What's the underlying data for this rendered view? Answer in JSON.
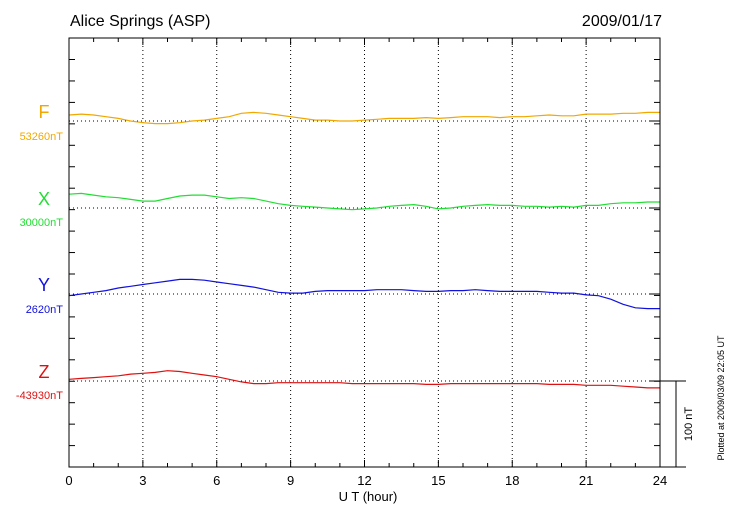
{
  "chart_data": {
    "type": "line",
    "title": "Alice Springs (ASP)",
    "date": "2009/01/17",
    "xlabel": "U T (hour)",
    "xlim": [
      0,
      24
    ],
    "xticks": [
      "0",
      "3",
      "6",
      "9",
      "12",
      "15",
      "18",
      "21",
      "24"
    ],
    "scale_bar_label": "100 nT",
    "scale_bar_nT": 100,
    "plotted_note": "Plotted at 2009/03/09 22:05 UT",
    "grid": true,
    "series": [
      {
        "name": "F",
        "baseline_label": "53260nT",
        "color": "#f0a800",
        "x": [
          0,
          0.5,
          1,
          1.5,
          2,
          2.5,
          3,
          3.5,
          4,
          4.5,
          5,
          5.5,
          6,
          6.5,
          7,
          7.5,
          8,
          8.5,
          9,
          9.5,
          10,
          10.5,
          11,
          11.5,
          12,
          12.5,
          13,
          13.5,
          14,
          14.5,
          15,
          15.5,
          16,
          16.5,
          17,
          17.5,
          18,
          18.5,
          19,
          19.5,
          20,
          20.5,
          21,
          21.5,
          22,
          22.5,
          23,
          23.5,
          24
        ],
        "y": [
          7,
          8,
          7,
          5,
          3,
          0,
          -2,
          -3,
          -3,
          -2,
          0,
          1,
          3,
          5,
          9,
          10,
          9,
          7,
          5,
          3,
          1,
          1,
          0,
          0,
          1,
          2,
          3,
          3,
          3,
          4,
          3,
          4,
          5,
          5,
          5,
          4,
          5,
          5,
          6,
          7,
          6,
          6,
          8,
          8,
          8,
          9,
          9,
          10,
          10
        ]
      },
      {
        "name": "X",
        "baseline_label": "30000nT",
        "color": "#22dd33",
        "x": [
          0,
          0.5,
          1,
          1.5,
          2,
          2.5,
          3,
          3.5,
          4,
          4.5,
          5,
          5.5,
          6,
          6.5,
          7,
          7.5,
          8,
          8.5,
          9,
          9.5,
          10,
          10.5,
          11,
          11.5,
          12,
          12.5,
          13,
          13.5,
          14,
          14.5,
          15,
          15.5,
          16,
          16.5,
          17,
          17.5,
          18,
          18.5,
          19,
          19.5,
          20,
          20.5,
          21,
          21.5,
          22,
          22.5,
          23,
          23.5,
          24
        ],
        "y": [
          16,
          17,
          15,
          13,
          12,
          10,
          8,
          8,
          11,
          14,
          15,
          15,
          13,
          11,
          12,
          11,
          8,
          5,
          3,
          2,
          1,
          0,
          -1,
          -2,
          -1,
          0,
          2,
          3,
          4,
          2,
          -1,
          0,
          2,
          3,
          4,
          3,
          3,
          2,
          2,
          1,
          2,
          1,
          3,
          3,
          5,
          6,
          6,
          7,
          7
        ]
      },
      {
        "name": "Y",
        "baseline_label": "2620nT",
        "color": "#1111dd",
        "x": [
          0,
          0.5,
          1,
          1.5,
          2,
          2.5,
          3,
          3.5,
          4,
          4.5,
          5,
          5.5,
          6,
          6.5,
          7,
          7.5,
          8,
          8.5,
          9,
          9.5,
          10,
          10.5,
          11,
          11.5,
          12,
          12.5,
          13,
          13.5,
          14,
          14.5,
          15,
          15.5,
          16,
          16.5,
          17,
          17.5,
          18,
          18.5,
          19,
          19.5,
          20,
          20.5,
          21,
          21.5,
          22,
          22.5,
          23,
          23.5,
          24
        ],
        "y": [
          -2,
          0,
          2,
          4,
          7,
          9,
          11,
          13,
          15,
          17,
          17,
          16,
          14,
          12,
          10,
          8,
          5,
          2,
          1,
          1,
          3,
          4,
          4,
          4,
          4,
          5,
          5,
          5,
          4,
          3,
          3,
          4,
          4,
          5,
          4,
          3,
          3,
          3,
          3,
          2,
          1,
          1,
          -1,
          -2,
          -6,
          -12,
          -16,
          -17,
          -17
        ]
      },
      {
        "name": "Z",
        "baseline_label": "-43930nT",
        "color": "#dd1111",
        "x": [
          0,
          0.5,
          1,
          1.5,
          2,
          2.5,
          3,
          3.5,
          4,
          4.5,
          5,
          5.5,
          6,
          6.5,
          7,
          7.5,
          8,
          8.5,
          9,
          9.5,
          10,
          10.5,
          11,
          11.5,
          12,
          12.5,
          13,
          13.5,
          14,
          14.5,
          15,
          15.5,
          16,
          16.5,
          17,
          17.5,
          18,
          18.5,
          19,
          19.5,
          20,
          20.5,
          21,
          21.5,
          22,
          22.5,
          23,
          23.5,
          24
        ],
        "y": [
          2,
          3,
          4,
          5,
          6,
          8,
          9,
          10,
          12,
          11,
          9,
          7,
          5,
          2,
          -1,
          -3,
          -3,
          -2,
          -2,
          -2,
          -2,
          -2,
          -2,
          -3,
          -3,
          -3,
          -3,
          -3,
          -3,
          -4,
          -4,
          -3,
          -3,
          -3,
          -3,
          -3,
          -3,
          -3,
          -3,
          -4,
          -4,
          -4,
          -5,
          -5,
          -5,
          -6,
          -7,
          -8,
          -8
        ]
      }
    ]
  }
}
